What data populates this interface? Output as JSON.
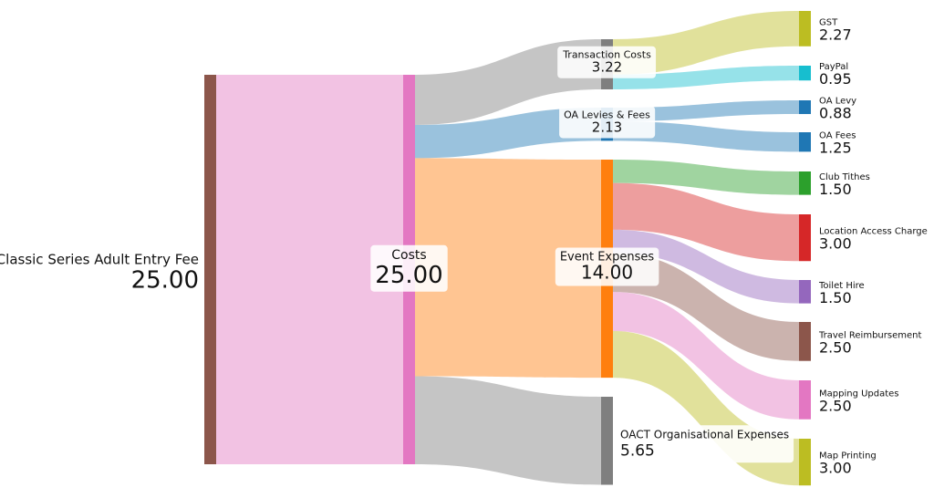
{
  "chart_data": {
    "type": "sankey",
    "title": "",
    "nodes": [
      {
        "id": "fee",
        "name": "Classic Series Adult Entry Fee",
        "value": "25.00",
        "color": "#8c564b"
      },
      {
        "id": "costs",
        "name": "Costs",
        "value": "25.00",
        "color": "#e377c2"
      },
      {
        "id": "trans",
        "name": "Transaction Costs",
        "value": "3.22",
        "color": "#7f7f7f"
      },
      {
        "id": "oalev",
        "name": "OA Levies & Fees",
        "value": "2.13",
        "color": "#1f77b4"
      },
      {
        "id": "event",
        "name": "Event Expenses",
        "value": "14.00",
        "color": "#ff7f0e"
      },
      {
        "id": "oact",
        "name": "OACT Organisational Expenses",
        "value": "5.65",
        "color": "#7f7f7f"
      },
      {
        "id": "gst",
        "name": "GST",
        "value": "2.27",
        "color": "#bcbd22"
      },
      {
        "id": "paypal",
        "name": "PayPal",
        "value": "0.95",
        "color": "#17becf"
      },
      {
        "id": "levy",
        "name": "OA Levy",
        "value": "0.88",
        "color": "#1f77b4"
      },
      {
        "id": "oafees",
        "name": "OA Fees",
        "value": "1.25",
        "color": "#1f77b4"
      },
      {
        "id": "tithe",
        "name": "Club Tithes",
        "value": "1.50",
        "color": "#2ca02c"
      },
      {
        "id": "loc",
        "name": "Location Access Charge",
        "value": "3.00",
        "color": "#d62728"
      },
      {
        "id": "toilet",
        "name": "Toilet Hire",
        "value": "1.50",
        "color": "#9467bd"
      },
      {
        "id": "travel",
        "name": "Travel Reimbursement",
        "value": "2.50",
        "color": "#8c564b"
      },
      {
        "id": "mapup",
        "name": "Mapping Updates",
        "value": "2.50",
        "color": "#e377c2"
      },
      {
        "id": "mapprt",
        "name": "Map Printing",
        "value": "3.00",
        "color": "#bcbd22"
      }
    ],
    "links": [
      {
        "source": "fee",
        "target": "costs",
        "value": 25.0,
        "color": "#e377c2"
      },
      {
        "source": "costs",
        "target": "trans",
        "value": 3.22,
        "color": "#7f7f7f"
      },
      {
        "source": "costs",
        "target": "oalev",
        "value": 2.13,
        "color": "#1f77b4"
      },
      {
        "source": "costs",
        "target": "event",
        "value": 14.0,
        "color": "#ff7f0e"
      },
      {
        "source": "costs",
        "target": "oact",
        "value": 5.65,
        "color": "#7f7f7f"
      },
      {
        "source": "trans",
        "target": "gst",
        "value": 2.27,
        "color": "#bcbd22"
      },
      {
        "source": "trans",
        "target": "paypal",
        "value": 0.95,
        "color": "#17becf"
      },
      {
        "source": "oalev",
        "target": "levy",
        "value": 0.88,
        "color": "#1f77b4"
      },
      {
        "source": "oalev",
        "target": "oafees",
        "value": 1.25,
        "color": "#1f77b4"
      },
      {
        "source": "event",
        "target": "tithe",
        "value": 1.5,
        "color": "#2ca02c"
      },
      {
        "source": "event",
        "target": "loc",
        "value": 3.0,
        "color": "#d62728"
      },
      {
        "source": "event",
        "target": "toilet",
        "value": 1.5,
        "color": "#9467bd"
      },
      {
        "source": "event",
        "target": "travel",
        "value": 2.5,
        "color": "#8c564b"
      },
      {
        "source": "event",
        "target": "mapup",
        "value": 2.5,
        "color": "#e377c2"
      },
      {
        "source": "event",
        "target": "mapprt",
        "value": 3.0,
        "color": "#bcbd22"
      }
    ]
  }
}
